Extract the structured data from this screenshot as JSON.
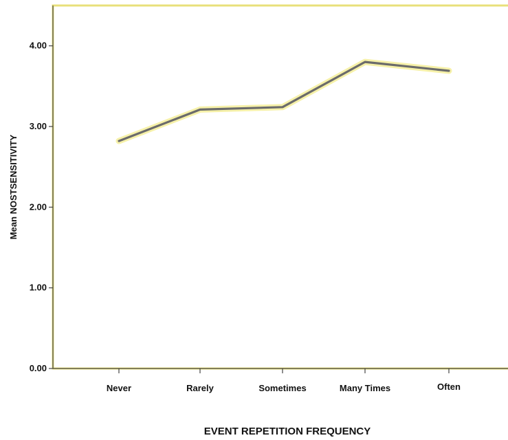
{
  "chart_data": {
    "type": "line",
    "title": "",
    "xlabel": "EVENT REPETITION FREQUENCY",
    "ylabel": "Mean NOSTSENSITIVITY",
    "categories": [
      "Never",
      "Rarely",
      "Sometimes",
      "Many Times",
      "Often"
    ],
    "series": [
      {
        "values": [
          2.82,
          3.21,
          3.24,
          3.8,
          3.69
        ]
      }
    ],
    "ylim": [
      0,
      4.5
    ],
    "yticks": [
      0,
      1,
      2,
      3,
      4
    ],
    "ytick_labels": [
      "0.00",
      "1.00",
      "2.00",
      "3.00",
      "4.00"
    ],
    "grid": false,
    "legend": "none",
    "colors": {
      "line": "#6b6b6b",
      "line_glow": "#f4ee9a",
      "plot_border": "#e8e07a",
      "plot_bg": "#ffffff"
    }
  }
}
